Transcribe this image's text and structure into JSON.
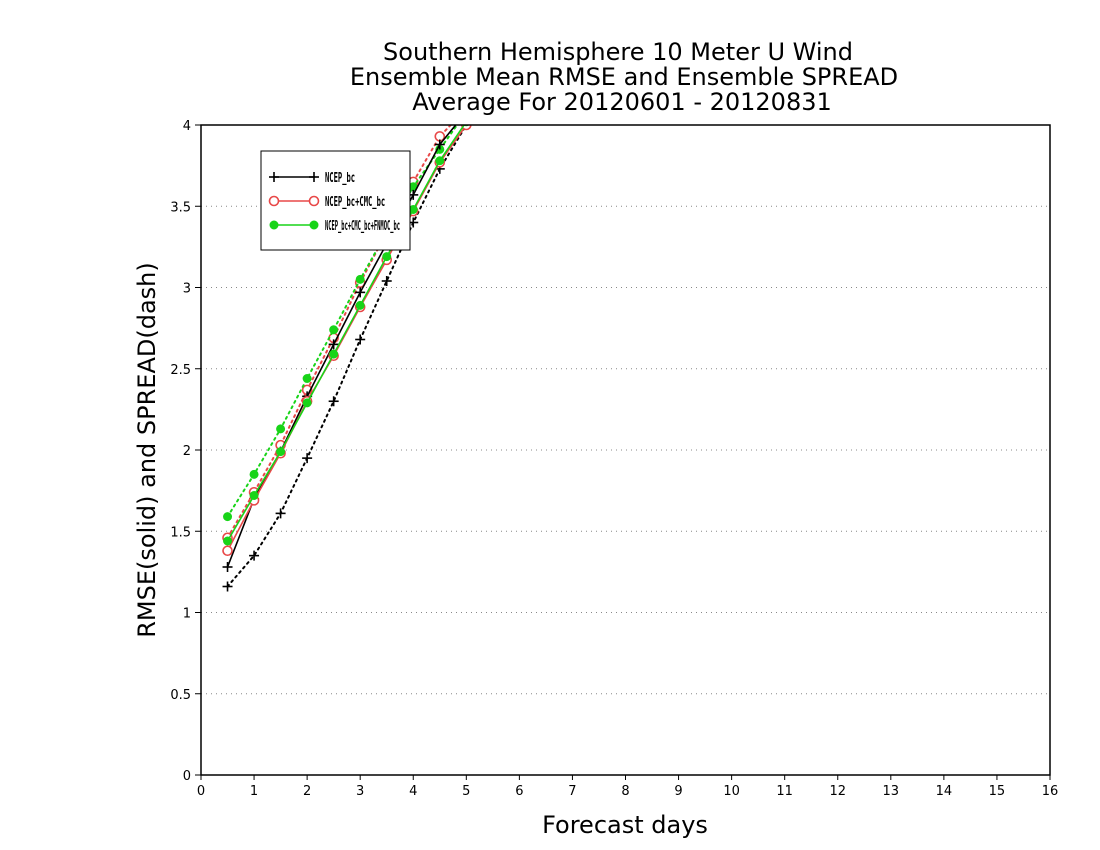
{
  "chart_data": {
    "type": "line",
    "title_lines": [
      "Southern Hemisphere 10 Meter U Wind",
      "Ensemble Mean RMSE and Ensemble SPREAD",
      "Average For 20120601 - 20120831"
    ],
    "xlabel": "Forecast days",
    "ylabel": "RMSE(solid) and SPREAD(dash)",
    "xlim": [
      0,
      16
    ],
    "ylim": [
      0,
      4
    ],
    "x_ticks": [
      0,
      1,
      2,
      3,
      4,
      5,
      6,
      7,
      8,
      9,
      10,
      11,
      12,
      13,
      14,
      15,
      16
    ],
    "y_ticks": [
      0,
      0.5,
      1,
      1.5,
      2,
      2.5,
      3,
      3.5,
      4
    ],
    "y_tick_labels": [
      "0",
      "0.5",
      "1",
      "1.5",
      "2",
      "2.5",
      "3",
      "3.5",
      "4"
    ],
    "grid": {
      "horizontal_dotted": true,
      "vertical": false
    },
    "legend": {
      "placement": "top-left"
    },
    "series": [
      {
        "name": "",
        "legend_text": "NCEP_bc",
        "color": "#000000",
        "marker": "plus",
        "kind": "rmse",
        "line": "solid",
        "x": [
          0.5,
          1,
          1.5,
          2,
          2.5,
          3,
          3.5,
          4,
          4.5,
          5
        ],
        "y": [
          1.28,
          1.7,
          1.99,
          2.33,
          2.65,
          2.97,
          3.27,
          3.57,
          3.88,
          4.08
        ]
      },
      {
        "name": "",
        "legend_text": "NCEP_bc+CMC_bc",
        "color": "#e84848",
        "marker": "open-circle",
        "kind": "rmse",
        "line": "solid",
        "x": [
          0.5,
          1,
          1.5,
          2,
          2.5,
          3,
          3.5,
          4,
          4.5,
          5
        ],
        "y": [
          1.38,
          1.69,
          1.98,
          2.3,
          2.58,
          2.88,
          3.17,
          3.47,
          3.77,
          4.0
        ]
      },
      {
        "name": "",
        "legend_text": "NCEP_bc+CMC_bc+FNMOC_bc",
        "color": "#18d418",
        "marker": "filled-circle",
        "kind": "rmse",
        "line": "solid",
        "x": [
          0.5,
          1,
          1.5,
          2,
          2.5,
          3,
          3.5,
          4,
          4.5,
          5
        ],
        "y": [
          1.44,
          1.72,
          1.99,
          2.29,
          2.59,
          2.89,
          3.19,
          3.48,
          3.78,
          4.02
        ]
      },
      {
        "name": "",
        "color": "#000000",
        "marker": "plus",
        "kind": "spread",
        "line": "dotted",
        "x": [
          0.5,
          1,
          1.5,
          2,
          2.5,
          3,
          3.5,
          4,
          4.5,
          5
        ],
        "y": [
          1.16,
          1.35,
          1.61,
          1.95,
          2.3,
          2.68,
          3.04,
          3.4,
          3.73,
          4.0
        ]
      },
      {
        "name": "",
        "color": "#e84848",
        "marker": "open-circle",
        "kind": "spread",
        "line": "dotted",
        "x": [
          0.5,
          1,
          1.5,
          2,
          2.5,
          3,
          3.5,
          4,
          4.5,
          5
        ],
        "y": [
          1.46,
          1.74,
          2.03,
          2.37,
          2.69,
          3.03,
          3.34,
          3.65,
          3.93,
          4.1
        ]
      },
      {
        "name": "",
        "color": "#18d418",
        "marker": "filled-circle",
        "kind": "spread",
        "line": "dotted",
        "x": [
          0.5,
          1,
          1.5,
          2,
          2.5,
          3,
          3.5,
          4,
          4.5,
          5
        ],
        "y": [
          1.59,
          1.85,
          2.13,
          2.44,
          2.74,
          3.05,
          3.34,
          3.62,
          3.85,
          4.08
        ]
      }
    ]
  }
}
